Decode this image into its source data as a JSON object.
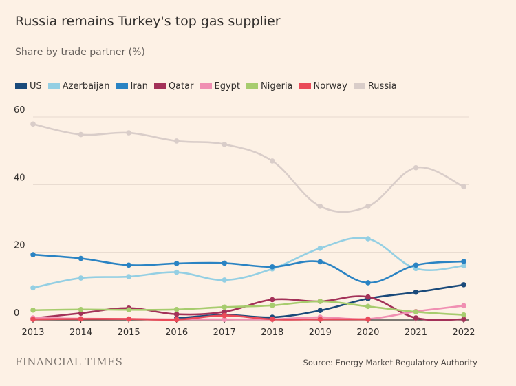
{
  "header": {
    "title": "Russia remains Turkey's top gas supplier",
    "subtitle": "Share by trade partner (%)"
  },
  "footer": {
    "brand": "FINANCIAL TIMES",
    "source": "Source: Energy Market Regulatory Authority"
  },
  "colors": {
    "background": "#fdf1e5",
    "gridline": "#e6d9ce",
    "baseline": "#33302e",
    "text": "#33302e"
  },
  "chart_data": {
    "type": "line",
    "title": "Russia remains Turkey's top gas supplier",
    "subtitle": "Share by trade partner (%)",
    "xlabel": "",
    "ylabel": "",
    "ylim": [
      0,
      60
    ],
    "y_ticks": [
      "0",
      "20",
      "40",
      "60"
    ],
    "grid": true,
    "legend_position": "top-left",
    "categories": [
      "2013",
      "2014",
      "2015",
      "2016",
      "2017",
      "2018",
      "2019",
      "2020",
      "2021",
      "2022"
    ],
    "series": [
      {
        "name": "US",
        "color": "#1a4a7a",
        "values": [
          null,
          null,
          null,
          0.5,
          1.5,
          0.8,
          2.8,
          6.3,
          8.2,
          10.4
        ]
      },
      {
        "name": "Azerbaijan",
        "color": "#94cfe3",
        "values": [
          9.5,
          12.4,
          12.8,
          14.1,
          11.8,
          15.1,
          21.2,
          24.0,
          15.2,
          16.0
        ]
      },
      {
        "name": "Iran",
        "color": "#2a83c3",
        "values": [
          19.3,
          18.2,
          16.2,
          16.7,
          16.8,
          15.7,
          17.2,
          11.0,
          16.2,
          17.3
        ]
      },
      {
        "name": "Qatar",
        "color": "#a33158",
        "values": [
          0.5,
          2.0,
          3.5,
          1.7,
          2.4,
          6.0,
          5.5,
          6.8,
          0.6,
          0.2
        ]
      },
      {
        "name": "Egypt",
        "color": "#f08fb2",
        "values": [
          0.6,
          0.4,
          0.3,
          0.2,
          0.2,
          0.2,
          0.8,
          0.3,
          2.5,
          4.2
        ]
      },
      {
        "name": "Nigeria",
        "color": "#a7cc6e",
        "values": [
          2.9,
          3.1,
          3.0,
          3.1,
          3.8,
          4.3,
          5.5,
          4.0,
          2.4,
          1.5
        ]
      },
      {
        "name": "Norway",
        "color": "#ea4a58",
        "values": [
          0.2,
          0.3,
          0.3,
          0.1,
          1.3,
          0.2,
          0.2,
          0.2,
          null,
          null
        ]
      },
      {
        "name": "Russia",
        "color": "#d9cdc9",
        "values": [
          57.9,
          54.8,
          55.3,
          52.9,
          51.9,
          47.0,
          33.6,
          33.6,
          45.0,
          39.4
        ]
      }
    ]
  }
}
